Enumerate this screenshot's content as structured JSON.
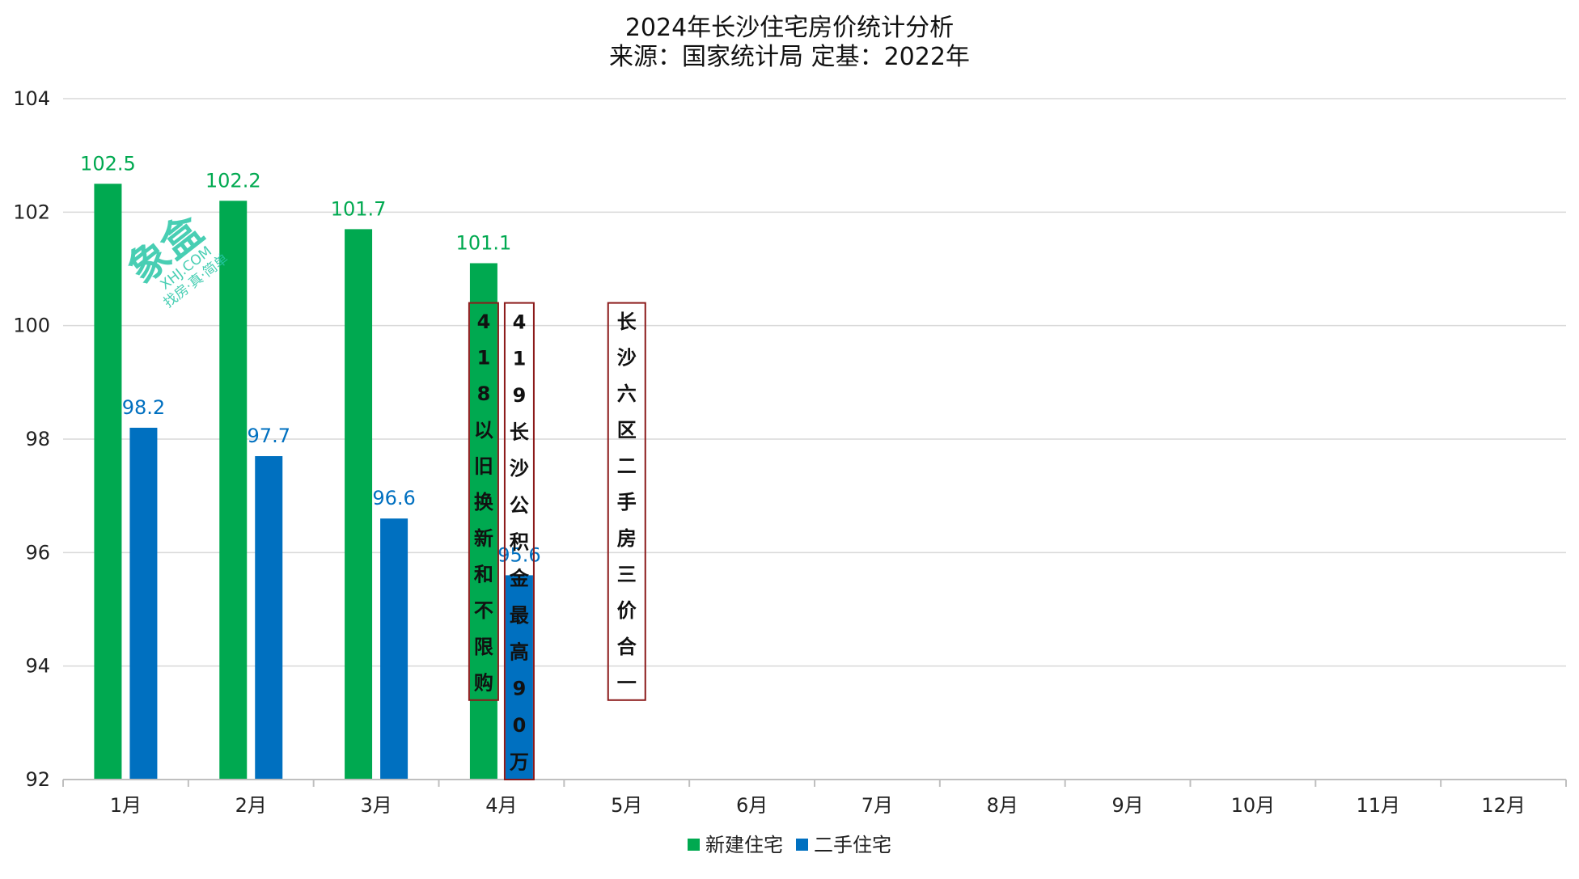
{
  "chart_data": {
    "type": "bar",
    "title": "2024年长沙住宅房价统计分析",
    "subtitle": "来源：国家统计局 定基：2022年",
    "categories": [
      "1月",
      "2月",
      "3月",
      "4月",
      "5月",
      "6月",
      "7月",
      "8月",
      "9月",
      "10月",
      "11月",
      "12月"
    ],
    "series": [
      {
        "name": "新建住宅",
        "color": "#00a950",
        "label_color": "#00a950",
        "values": [
          102.5,
          102.2,
          101.7,
          101.1,
          null,
          null,
          null,
          null,
          null,
          null,
          null,
          null
        ]
      },
      {
        "name": "二手住宅",
        "color": "#0070c0",
        "label_color": "#0070c0",
        "values": [
          98.2,
          97.7,
          96.6,
          95.6,
          null,
          null,
          null,
          null,
          null,
          null,
          null,
          null
        ]
      }
    ],
    "ylim": [
      92,
      104
    ],
    "yticks": [
      92,
      94,
      96,
      98,
      100,
      102,
      104
    ],
    "grid": true,
    "legend": "bottom-center",
    "annotations": [
      {
        "category": "4月",
        "anchor": "series-0",
        "y_top": 100.4,
        "y_bottom": 93.4,
        "chars": [
          "4",
          "1",
          "8",
          "以",
          "旧",
          "换",
          "新",
          "和",
          "不",
          "限",
          "购"
        ]
      },
      {
        "category": "4月",
        "anchor": "series-1",
        "y_top": 100.4,
        "y_bottom": 92.0,
        "chars": [
          "4",
          "1",
          "9",
          "长",
          "沙",
          "公",
          "积",
          "金",
          "最",
          "高",
          "9",
          "0",
          "万"
        ]
      },
      {
        "category": "5月",
        "anchor": "center",
        "y_top": 100.4,
        "y_bottom": 93.4,
        "chars": [
          "长",
          "沙",
          "六",
          "区",
          "二",
          "手",
          "房",
          "三",
          "价",
          "合",
          "一"
        ]
      }
    ],
    "annotation_border_color": "#8b1a1a"
  },
  "watermark": {
    "brand": "象盒",
    "site": "XHJ.COM",
    "slogan": "找房·真·简单"
  }
}
